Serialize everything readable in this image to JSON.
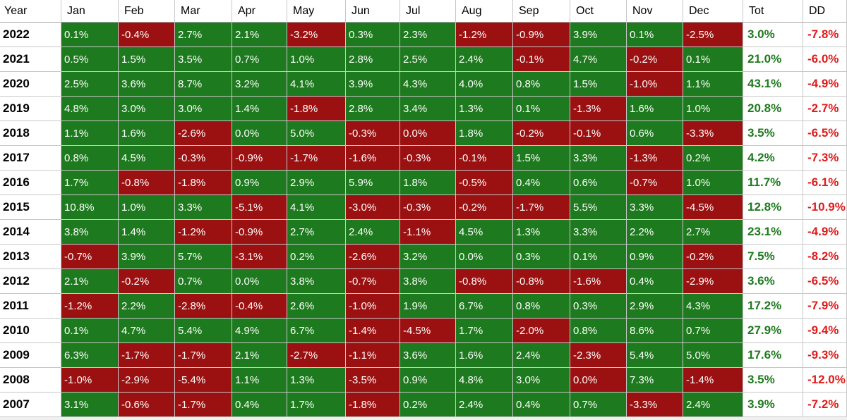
{
  "headers": [
    "Year",
    "Jan",
    "Feb",
    "Mar",
    "Apr",
    "May",
    "Jun",
    "Jul",
    "Aug",
    "Sep",
    "Oct",
    "Nov",
    "Dec",
    "Tot",
    "DD"
  ],
  "rows": [
    {
      "year": "2022",
      "months": [
        "0.1%",
        "-0.4%",
        "2.7%",
        "2.1%",
        "-3.2%",
        "0.3%",
        "2.3%",
        "-1.2%",
        "-0.9%",
        "3.9%",
        "0.1%",
        "-2.5%"
      ],
      "tot": "3.0%",
      "dd": "-7.8%"
    },
    {
      "year": "2021",
      "months": [
        "0.5%",
        "1.5%",
        "3.5%",
        "0.7%",
        "1.0%",
        "2.8%",
        "2.5%",
        "2.4%",
        "-0.1%",
        "4.7%",
        "-0.2%",
        "0.1%"
      ],
      "tot": "21.0%",
      "dd": "-6.0%"
    },
    {
      "year": "2020",
      "months": [
        "2.5%",
        "3.6%",
        "8.7%",
        "3.2%",
        "4.1%",
        "3.9%",
        "4.3%",
        "4.0%",
        "0.8%",
        "1.5%",
        "-1.0%",
        "1.1%"
      ],
      "tot": "43.1%",
      "dd": "-4.9%"
    },
    {
      "year": "2019",
      "months": [
        "4.8%",
        "3.0%",
        "3.0%",
        "1.4%",
        "-1.8%",
        "2.8%",
        "3.4%",
        "1.3%",
        "0.1%",
        "-1.3%",
        "1.6%",
        "1.0%"
      ],
      "tot": "20.8%",
      "dd": "-2.7%"
    },
    {
      "year": "2018",
      "months": [
        "1.1%",
        "1.6%",
        "-2.6%",
        "0.0%",
        "5.0%",
        "-0.3%",
        "0.0%",
        "1.8%",
        "-0.2%",
        "-0.1%",
        "0.6%",
        "-3.3%"
      ],
      "tot": "3.5%",
      "dd": "-6.5%"
    },
    {
      "year": "2017",
      "months": [
        "0.8%",
        "4.5%",
        "-0.3%",
        "-0.9%",
        "-1.7%",
        "-1.6%",
        "-0.3%",
        "-0.1%",
        "1.5%",
        "3.3%",
        "-1.3%",
        "0.2%"
      ],
      "tot": "4.2%",
      "dd": "-7.3%"
    },
    {
      "year": "2016",
      "months": [
        "1.7%",
        "-0.8%",
        "-1.8%",
        "0.9%",
        "2.9%",
        "5.9%",
        "1.8%",
        "-0.5%",
        "0.4%",
        "0.6%",
        "-0.7%",
        "1.0%"
      ],
      "tot": "11.7%",
      "dd": "-6.1%"
    },
    {
      "year": "2015",
      "months": [
        "10.8%",
        "1.0%",
        "3.3%",
        "-5.1%",
        "4.1%",
        "-3.0%",
        "-0.3%",
        "-0.2%",
        "-1.7%",
        "5.5%",
        "3.3%",
        "-4.5%"
      ],
      "tot": "12.8%",
      "dd": "-10.9%"
    },
    {
      "year": "2014",
      "months": [
        "3.8%",
        "1.4%",
        "-1.2%",
        "-0.9%",
        "2.7%",
        "2.4%",
        "-1.1%",
        "4.5%",
        "1.3%",
        "3.3%",
        "2.2%",
        "2.7%"
      ],
      "tot": "23.1%",
      "dd": "-4.9%"
    },
    {
      "year": "2013",
      "months": [
        "-0.7%",
        "3.9%",
        "5.7%",
        "-3.1%",
        "0.2%",
        "-2.6%",
        "3.2%",
        "0.0%",
        "0.3%",
        "0.1%",
        "0.9%",
        "-0.2%"
      ],
      "tot": "7.5%",
      "dd": "-8.2%"
    },
    {
      "year": "2012",
      "months": [
        "2.1%",
        "-0.2%",
        "0.7%",
        "0.0%",
        "3.8%",
        "-0.7%",
        "3.8%",
        "-0.8%",
        "-0.8%",
        "-1.6%",
        "0.4%",
        "-2.9%"
      ],
      "tot": "3.6%",
      "dd": "-6.5%"
    },
    {
      "year": "2011",
      "months": [
        "-1.2%",
        "2.2%",
        "-2.8%",
        "-0.4%",
        "2.6%",
        "-1.0%",
        "1.9%",
        "6.7%",
        "0.8%",
        "0.3%",
        "2.9%",
        "4.3%"
      ],
      "tot": "17.2%",
      "dd": "-7.9%"
    },
    {
      "year": "2010",
      "months": [
        "0.1%",
        "4.7%",
        "5.4%",
        "4.9%",
        "6.7%",
        "-1.4%",
        "-4.5%",
        "1.7%",
        "-2.0%",
        "0.8%",
        "8.6%",
        "0.7%"
      ],
      "tot": "27.9%",
      "dd": "-9.4%"
    },
    {
      "year": "2009",
      "months": [
        "6.3%",
        "-1.7%",
        "-1.7%",
        "2.1%",
        "-2.7%",
        "-1.1%",
        "3.6%",
        "1.6%",
        "2.4%",
        "-2.3%",
        "5.4%",
        "5.0%"
      ],
      "tot": "17.6%",
      "dd": "-9.3%"
    },
    {
      "year": "2008",
      "months": [
        "-1.0%",
        "-2.9%",
        "-5.4%",
        "1.1%",
        "1.3%",
        "-3.5%",
        "0.9%",
        "4.8%",
        "3.0%",
        "0.0%",
        "7.3%",
        "-1.4%"
      ],
      "tot": "3.5%",
      "dd": "-12.0%"
    },
    {
      "year": "2007",
      "months": [
        "3.1%",
        "-0.6%",
        "-1.7%",
        "0.4%",
        "1.7%",
        "-1.8%",
        "0.2%",
        "2.4%",
        "0.4%",
        "0.7%",
        "-3.3%",
        "2.4%"
      ],
      "tot": "3.9%",
      "dd": "-7.2%"
    }
  ],
  "neg_cells": [
    [
      1,
      4,
      7,
      8,
      11
    ],
    [
      8,
      10
    ],
    [
      10
    ],
    [
      4,
      9
    ],
    [
      2,
      5,
      6,
      8,
      9,
      11
    ],
    [
      2,
      3,
      4,
      5,
      6,
      7,
      10
    ],
    [
      1,
      2,
      7,
      10
    ],
    [
      3,
      5,
      6,
      7,
      8,
      11
    ],
    [
      2,
      3,
      6
    ],
    [
      0,
      3,
      5,
      11
    ],
    [
      1,
      5,
      7,
      8,
      9,
      11
    ],
    [
      0,
      2,
      3,
      5
    ],
    [
      5,
      6,
      8
    ],
    [
      1,
      2,
      4,
      5,
      9
    ],
    [
      0,
      1,
      2,
      5,
      9,
      11
    ],
    [
      1,
      2,
      5,
      10
    ]
  ],
  "colors": {
    "positive_cell": "#1e7a1e",
    "negative_cell": "#9b1111",
    "total_text": "#1e7a1e",
    "drawdown_text": "#e01b1b"
  }
}
